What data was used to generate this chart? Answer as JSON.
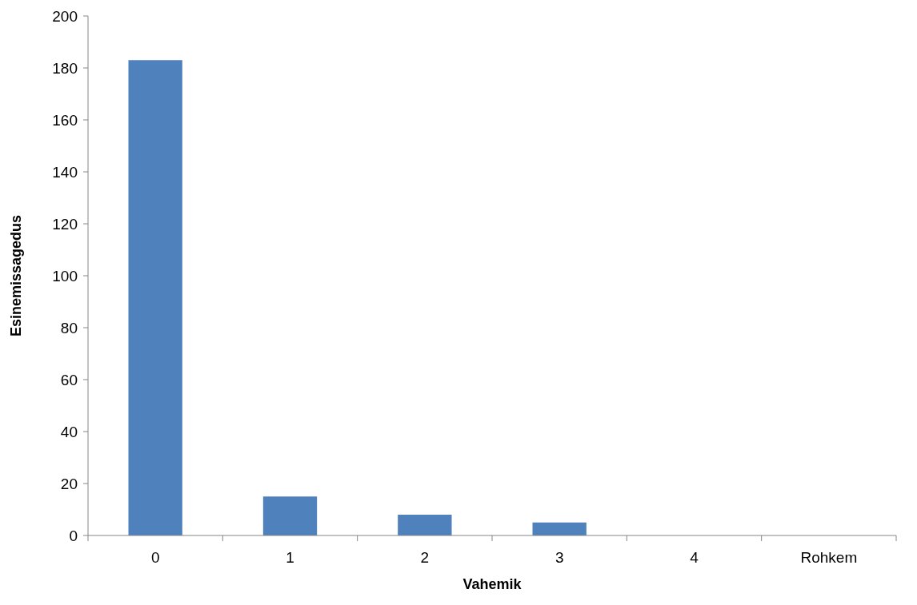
{
  "chart_data": {
    "type": "bar",
    "xlabel": "Vahemik",
    "ylabel": "Esinemissagedus",
    "categories": [
      "0",
      "1",
      "2",
      "3",
      "4",
      "Rohkem"
    ],
    "values": [
      183,
      15,
      8,
      5,
      0,
      0
    ],
    "color": "#4f81bd",
    "ylim": [
      0,
      200
    ],
    "yticks": [
      0,
      20,
      40,
      60,
      80,
      100,
      120,
      140,
      160,
      180,
      200
    ],
    "grid": false
  }
}
